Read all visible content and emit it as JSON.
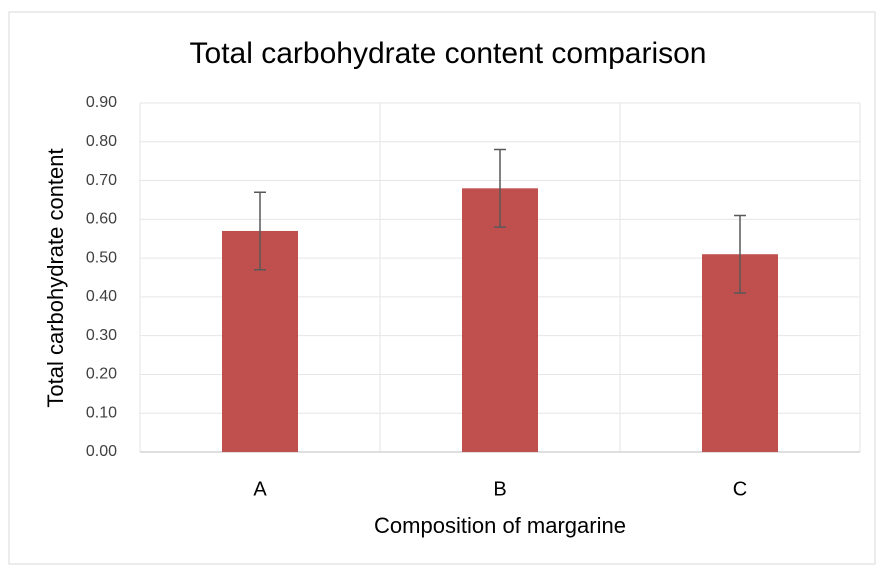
{
  "chart_data": {
    "type": "bar",
    "title": "Total carbohydrate content comparison",
    "x_label": "Composition of margarine",
    "y_label": "Total carbohydrate content",
    "categories": [
      "A",
      "B",
      "C"
    ],
    "values": [
      0.57,
      0.68,
      0.51
    ],
    "errors": [
      0.1,
      0.1,
      0.1
    ],
    "color": "#c0504d",
    "error_color": "#595959",
    "ylim": [
      0,
      0.9
    ],
    "yticks": [
      {
        "value": 0,
        "label": "0.00"
      },
      {
        "value": 0.1,
        "label": "0.10"
      },
      {
        "value": 0.2,
        "label": "0.20"
      },
      {
        "value": 0.3,
        "label": "0.30"
      },
      {
        "value": 0.4,
        "label": "0.40"
      },
      {
        "value": 0.5,
        "label": "0.50"
      },
      {
        "value": 0.6,
        "label": "0.60"
      },
      {
        "value": 0.7,
        "label": "0.70"
      },
      {
        "value": 0.8,
        "label": "0.80"
      },
      {
        "value": 0.9,
        "label": "0.90"
      }
    ],
    "grid": true
  }
}
